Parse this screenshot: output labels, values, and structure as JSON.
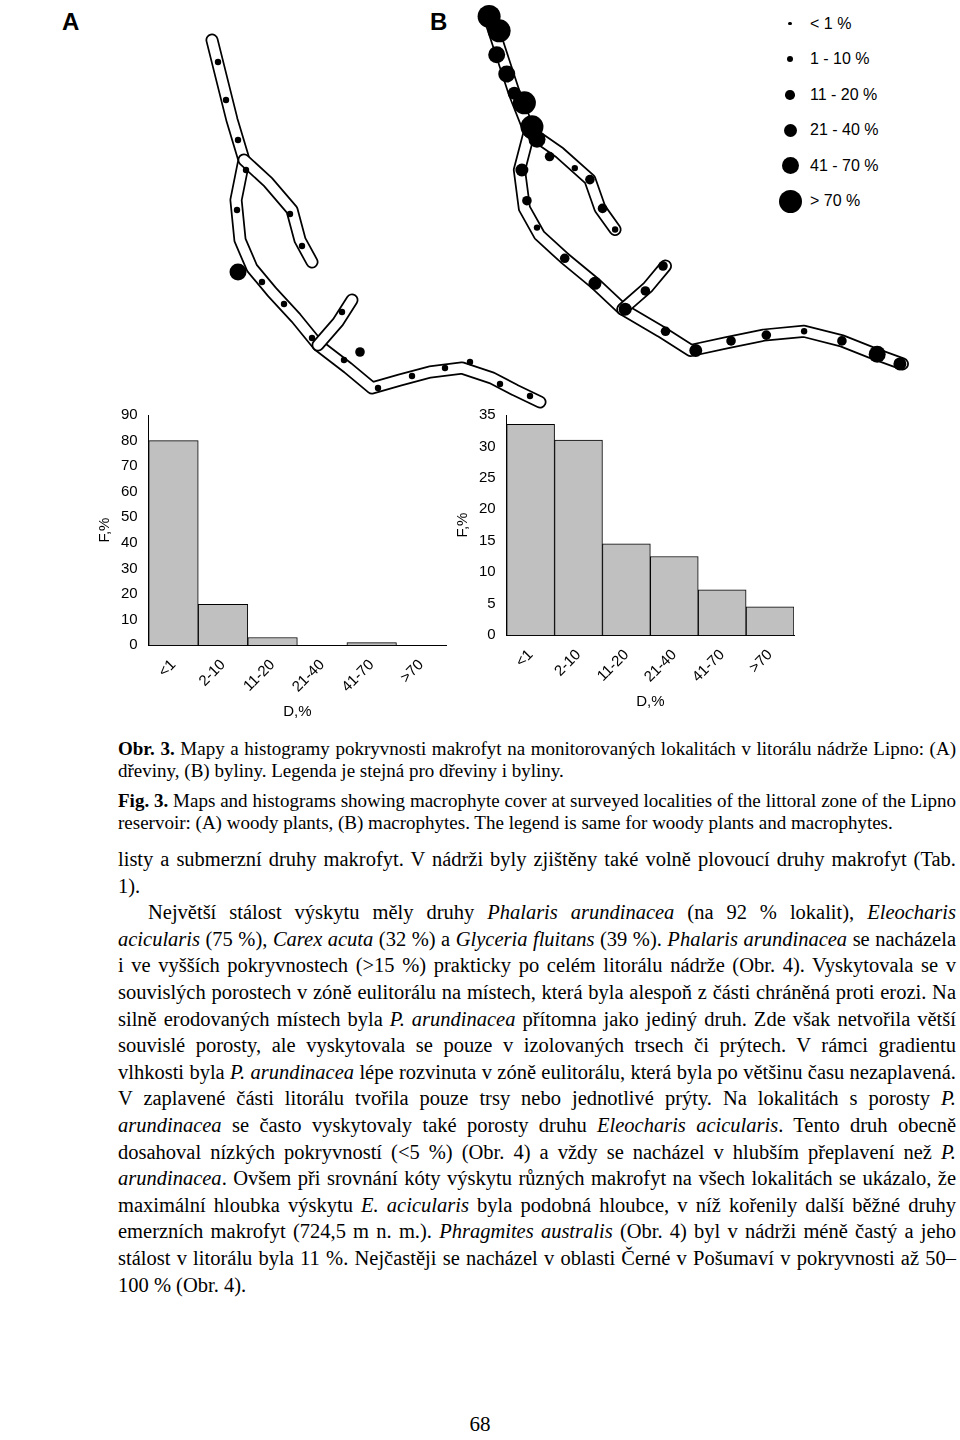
{
  "panel_labels": [
    "A",
    "B"
  ],
  "map_legend": [
    "< 1 %",
    "1 - 10 %",
    "11 - 20 %",
    "21 - 40 %",
    "41 - 70 %",
    "> 70 %"
  ],
  "chart_data": [
    {
      "type": "bar",
      "x_label": "D,%",
      "y_label": "F,%",
      "categories": [
        "<1",
        "2-10",
        "11-20",
        "21-40",
        "41-70",
        ">70"
      ],
      "values": [
        80,
        16,
        3,
        0,
        1,
        0
      ],
      "color": "#c0c0c0",
      "ylim": [
        0,
        90
      ],
      "yticks": [
        0,
        10,
        20,
        30,
        40,
        50,
        60,
        70,
        80,
        90
      ],
      "grid": false
    },
    {
      "type": "bar",
      "x_label": "D,%",
      "y_label": "F,%",
      "categories": [
        "<1",
        "2-10",
        "11-20",
        "21-40",
        "41-70",
        ">70"
      ],
      "values": [
        33.5,
        31,
        14.5,
        12.5,
        7.2,
        4.5
      ],
      "color": "#c0c0c0",
      "ylim": [
        0,
        35
      ],
      "yticks": [
        0,
        5,
        10,
        15,
        20,
        25,
        30,
        35
      ],
      "grid": false
    }
  ],
  "caption": [
    [
      {
        "text": "Obr. 3.",
        "style": "bold"
      },
      " Mapy a histogramy pokryvnosti makrofyt na monitorovaných lokalitách v litorálu nádrže Lipno: (A) dřeviny, (B) byliny. Legenda je stejná pro dřeviny i byliny."
    ],
    [
      {
        "text": "Fig. 3.",
        "style": "bold"
      },
      " Maps and histograms showing macrophyte cover at surveyed localities of the littoral zone of the Lipno reservoir: (A) woody plants, (B) macrophytes. The legend is same for woody plants and macrophytes."
    ]
  ],
  "body": [
    {
      "indent": false,
      "segments": [
        "listy a submerzní druhy makrofyt. V nádrži byly zjištěny také volně plovoucí druhy makrofyt (Tab. 1)."
      ]
    },
    {
      "indent": true,
      "segments": [
        "Největší stálost výskytu měly druhy ",
        {
          "text": "Phalaris arundinacea",
          "style": "italic"
        },
        " (na 92 % lokalit), ",
        {
          "text": "Eleocharis acicularis",
          "style": "italic"
        },
        " (75 %), ",
        {
          "text": "Carex acuta",
          "style": "italic"
        },
        " (32 %) a ",
        {
          "text": "Glyceria fluitans",
          "style": "italic"
        },
        " (39 %). ",
        {
          "text": "Phalaris arundinacea",
          "style": "italic"
        },
        " se nacházela i ve vyšších pokryvnostech (>15 %) prakticky po celém litorálu nádrže (Obr. 4). Vyskytovala se v souvislých porostech v zóně eulitorálu na místech, která byla alespoň z části chráněná proti erozi. Na silně erodovaných místech byla ",
        {
          "text": "P. arundinacea",
          "style": "italic"
        },
        " přítomna jako jediný druh. Zde však netvořila větší souvislé porosty, ale vyskytovala se pouze v izolovaných trsech či prýtech. V rámci gradientu vlhkosti byla ",
        {
          "text": "P. arundinacea",
          "style": "italic"
        },
        " lépe rozvinuta v zóně eulitorálu, která byla po většinu času nezaplavená. V zaplavené části litorálu tvořila pouze trsy nebo jednotlivé prýty. Na lokalitách s porosty ",
        {
          "text": "P. arundinacea",
          "style": "italic"
        },
        " se často vyskytovaly také porosty druhu ",
        {
          "text": "Eleocharis acicularis",
          "style": "italic"
        },
        ". Tento druh obecně dosahoval nízkých pokryvností (<5 %) (Obr. 4) a vždy se nacházel v hlubším přeplavení než ",
        {
          "text": "P. arundinacea",
          "style": "italic"
        },
        ". Ovšem při srovnání kóty výskytu různých makrofyt na všech lokalitách se ukázalo, že maximální hloubka výskytu ",
        {
          "text": "E. acicularis",
          "style": "italic"
        },
        " byla podobná hloubce, v níž kořenily další běžné druhy emerzních makrofyt (724,5 m n. m.). ",
        {
          "text": "Phragmites australis",
          "style": "italic"
        },
        " (Obr. 4) byl v nádrži méně častý a jeho stálost v litorálu byla 11 %. Nejčastěji se nacházel v oblasti Černé v Pošumaví v pokryvnosti až 50–100 % (Obr. 4)."
      ]
    }
  ],
  "page_number": "68"
}
